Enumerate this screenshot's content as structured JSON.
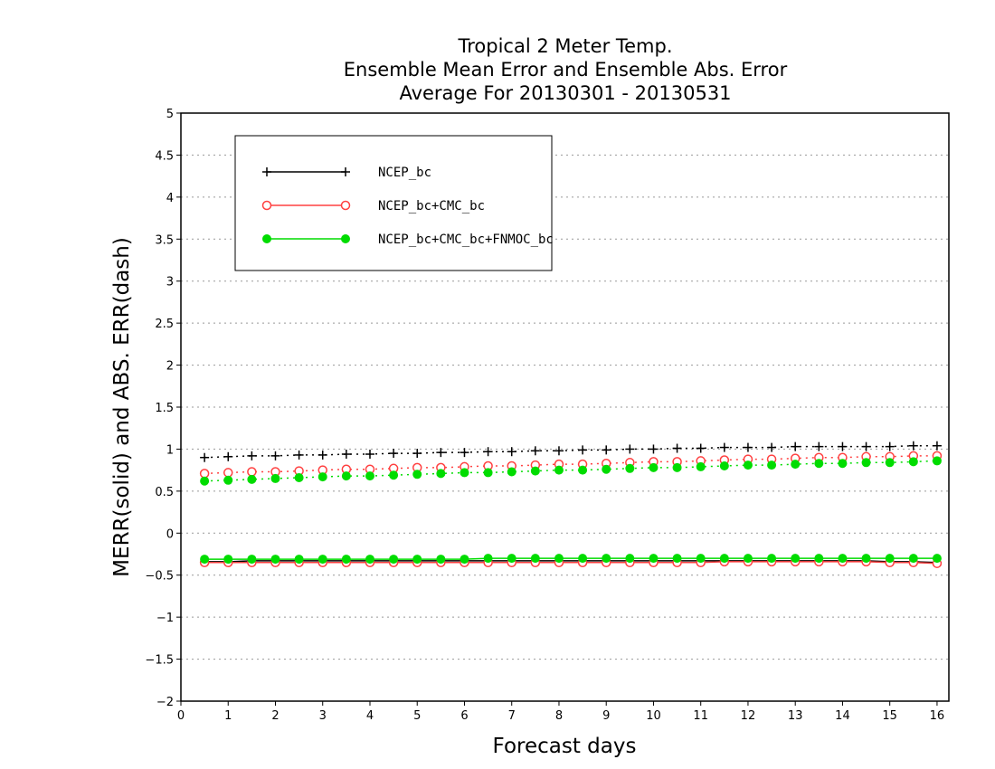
{
  "chart_data": {
    "type": "line",
    "title_lines": [
      "Tropical 2 Meter Temp.",
      "Ensemble Mean Error and Ensemble Abs. Error",
      "Average For 20130301 - 20130531"
    ],
    "xlabel": "Forecast days",
    "ylabel": "MERR(solid) and ABS. ERR(dash)",
    "xlim": [
      0,
      16.25
    ],
    "ylim": [
      -2,
      5
    ],
    "x_ticks": [
      "0",
      "1",
      "2",
      "3",
      "4",
      "5",
      "6",
      "7",
      "8",
      "9",
      "10",
      "11",
      "12",
      "13",
      "14",
      "15",
      "16"
    ],
    "y_ticks": [
      "-2",
      "-1.5",
      "-1",
      "-0.5",
      "0",
      "0.5",
      "1",
      "1.5",
      "2",
      "2.5",
      "3",
      "3.5",
      "4",
      "4.5",
      "5"
    ],
    "grid": "horizontal dotted",
    "legend_position": "top-left",
    "x": [
      0.5,
      1,
      1.5,
      2,
      2.5,
      3,
      3.5,
      4,
      4.5,
      5,
      5.5,
      6,
      6.5,
      7,
      7.5,
      8,
      8.5,
      9,
      9.5,
      10,
      10.5,
      11,
      11.5,
      12,
      12.5,
      13,
      13.5,
      14,
      14.5,
      15,
      15.5,
      16
    ],
    "series": [
      {
        "name": "NCEP_bc",
        "color": "#000000",
        "marker": "plus",
        "merr": [
          -0.34,
          -0.34,
          -0.33,
          -0.33,
          -0.33,
          -0.33,
          -0.33,
          -0.33,
          -0.33,
          -0.33,
          -0.33,
          -0.33,
          -0.33,
          -0.33,
          -0.33,
          -0.33,
          -0.33,
          -0.33,
          -0.33,
          -0.33,
          -0.33,
          -0.33,
          -0.33,
          -0.33,
          -0.33,
          -0.33,
          -0.33,
          -0.33,
          -0.33,
          -0.34,
          -0.34,
          -0.35
        ],
        "abs_err": [
          0.9,
          0.91,
          0.92,
          0.92,
          0.93,
          0.93,
          0.94,
          0.94,
          0.95,
          0.95,
          0.96,
          0.96,
          0.97,
          0.97,
          0.98,
          0.98,
          0.99,
          0.99,
          1.0,
          1.0,
          1.01,
          1.01,
          1.02,
          1.02,
          1.02,
          1.03,
          1.03,
          1.03,
          1.03,
          1.03,
          1.04,
          1.04
        ]
      },
      {
        "name": "NCEP_bc+CMC_bc",
        "color": "#ff4040",
        "marker": "open-circle",
        "merr": [
          -0.35,
          -0.35,
          -0.35,
          -0.35,
          -0.35,
          -0.35,
          -0.35,
          -0.35,
          -0.35,
          -0.35,
          -0.35,
          -0.35,
          -0.35,
          -0.35,
          -0.35,
          -0.35,
          -0.35,
          -0.35,
          -0.35,
          -0.35,
          -0.35,
          -0.35,
          -0.34,
          -0.34,
          -0.34,
          -0.34,
          -0.34,
          -0.34,
          -0.34,
          -0.35,
          -0.35,
          -0.36
        ],
        "abs_err": [
          0.71,
          0.72,
          0.73,
          0.73,
          0.74,
          0.75,
          0.76,
          0.76,
          0.77,
          0.78,
          0.78,
          0.79,
          0.8,
          0.8,
          0.81,
          0.82,
          0.82,
          0.83,
          0.84,
          0.85,
          0.85,
          0.86,
          0.87,
          0.88,
          0.88,
          0.89,
          0.9,
          0.9,
          0.91,
          0.91,
          0.92,
          0.92
        ]
      },
      {
        "name": "NCEP_bc+CMC_bc+FNMOC_bc",
        "color": "#00dc00",
        "marker": "filled-circle",
        "merr": [
          -0.31,
          -0.31,
          -0.31,
          -0.31,
          -0.31,
          -0.31,
          -0.31,
          -0.31,
          -0.31,
          -0.31,
          -0.31,
          -0.31,
          -0.3,
          -0.3,
          -0.3,
          -0.3,
          -0.3,
          -0.3,
          -0.3,
          -0.3,
          -0.3,
          -0.3,
          -0.3,
          -0.3,
          -0.3,
          -0.3,
          -0.3,
          -0.3,
          -0.3,
          -0.3,
          -0.3,
          -0.3
        ],
        "abs_err": [
          0.62,
          0.63,
          0.64,
          0.65,
          0.66,
          0.67,
          0.68,
          0.68,
          0.69,
          0.7,
          0.71,
          0.72,
          0.72,
          0.73,
          0.74,
          0.75,
          0.75,
          0.76,
          0.77,
          0.78,
          0.78,
          0.79,
          0.8,
          0.81,
          0.81,
          0.82,
          0.83,
          0.83,
          0.84,
          0.84,
          0.85,
          0.86
        ]
      }
    ]
  }
}
